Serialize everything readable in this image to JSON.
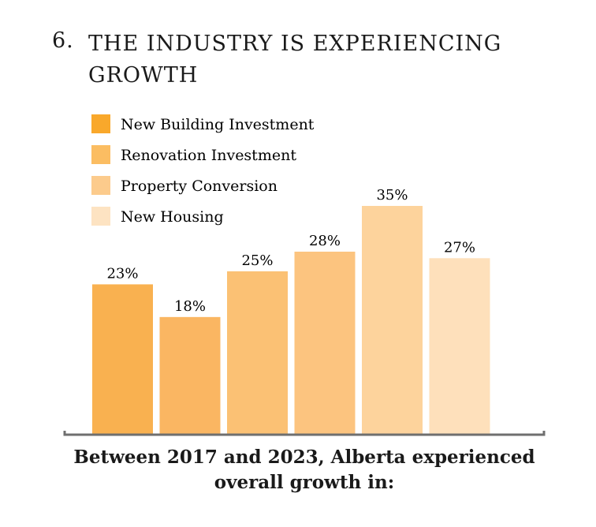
{
  "chart_data": {
    "type": "bar",
    "title_number": "6.",
    "title": "THE INDUSTRY IS EXPERIENCING GROWTH",
    "legend": [
      {
        "name": "New Building Investment",
        "color": "#f9a82b"
      },
      {
        "name": "Renovation Investment",
        "color": "#fbbd62"
      },
      {
        "name": "Property Conversion",
        "color": "#fccb8c"
      },
      {
        "name": "New Housing",
        "color": "#fde3c2"
      }
    ],
    "categories": [
      null,
      null,
      null,
      null,
      null,
      null
    ],
    "values": [
      23,
      18,
      25,
      28,
      35,
      27
    ],
    "value_labels": [
      "23%",
      "18%",
      "25%",
      "28%",
      "35%",
      "27%"
    ],
    "colors": [
      "#f9b150",
      "#fab662",
      "#fbc174",
      "#fcc47f",
      "#fdd39c",
      "#fee0bb"
    ],
    "caption": "Between 2017 and 2023, Alberta experienced overall growth in:"
  }
}
